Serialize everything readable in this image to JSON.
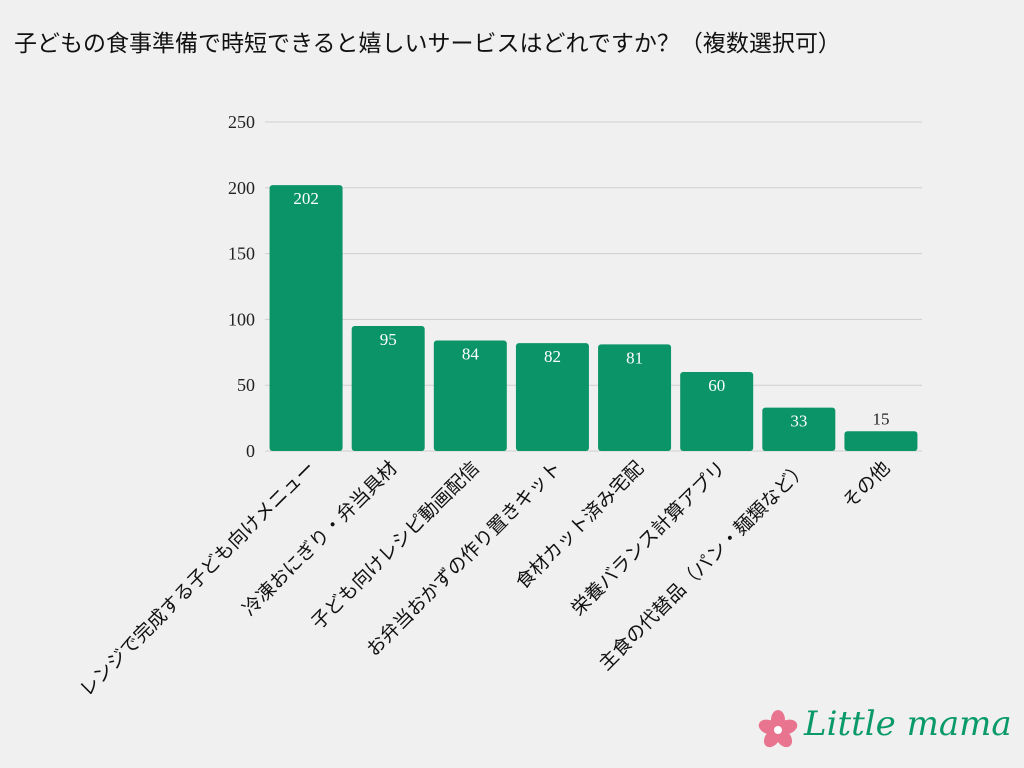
{
  "chart_data": {
    "type": "bar",
    "title": "子どもの食事準備で時短できると嬉しいサービスはどれですか？（複数選択可）",
    "categories": [
      "レンジで完成する子ども向けメニュー",
      "冷凍おにぎり・弁当具材",
      "子ども向けレシピ動画配信",
      "お弁当おかずの作り置きキット",
      "食材カット済み宅配",
      "栄養バランス計算アプリ",
      "主食の代替品（パン・麺類など）",
      "その他"
    ],
    "values": [
      202,
      95,
      84,
      82,
      81,
      60,
      33,
      15
    ],
    "ylim": [
      0,
      250
    ],
    "yticks": [
      0,
      50,
      100,
      150,
      200,
      250
    ],
    "grid": true,
    "bar_color": "#0b9467",
    "grid_color": "#cfcfcf"
  },
  "logo": {
    "text": "Little mama",
    "flower_color": "#e9748f",
    "text_color": "#0a9a6a"
  }
}
